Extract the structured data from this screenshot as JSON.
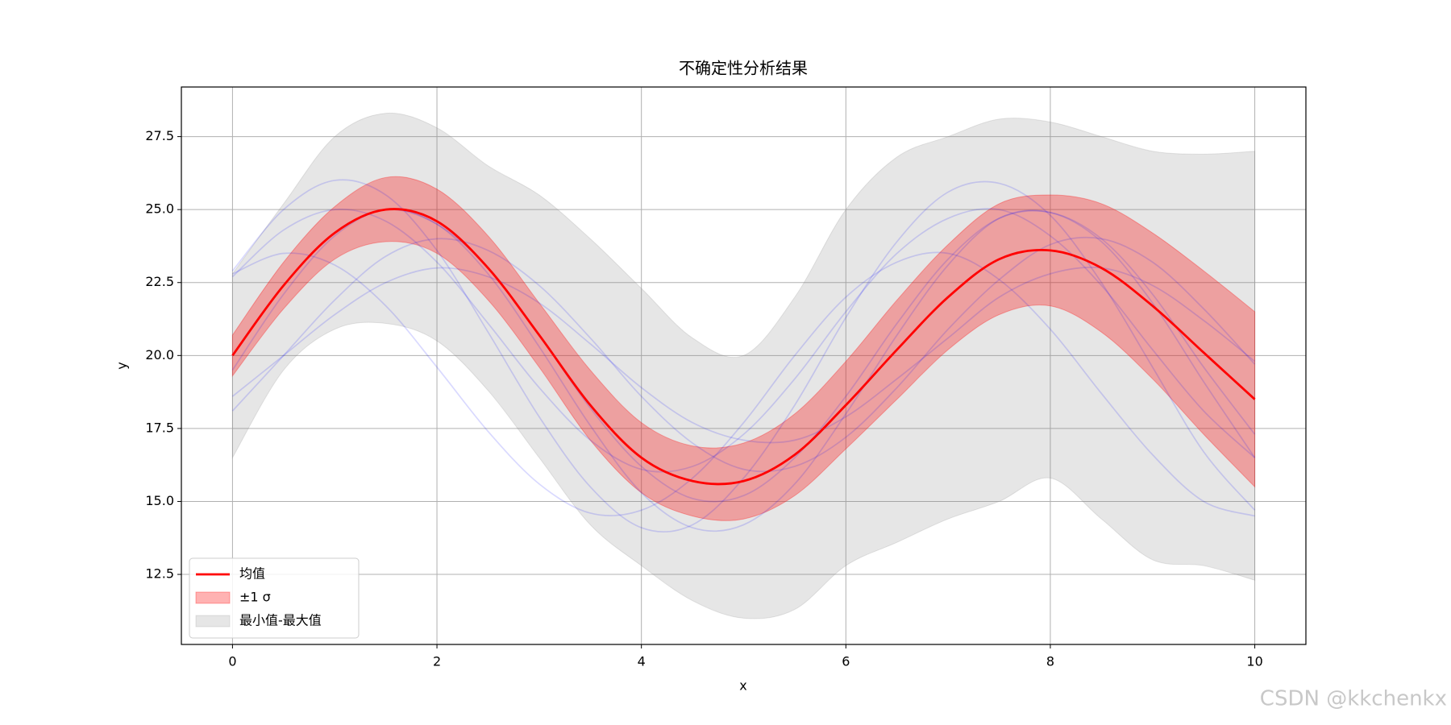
{
  "chart_data": {
    "type": "line",
    "title": "不确定性分析结果",
    "x_label": "x",
    "y_label": "y",
    "watermark": "CSDN @kkchenkx",
    "x": [
      0,
      0.5,
      1,
      1.5,
      2,
      2.5,
      3,
      3.5,
      4,
      4.5,
      5,
      5.5,
      6,
      6.5,
      7,
      7.5,
      8,
      8.5,
      9,
      9.5,
      10
    ],
    "xlim": [
      -0.5,
      10.5
    ],
    "ylim": [
      10.1,
      29.2
    ],
    "xticks": [
      0,
      2,
      4,
      6,
      8,
      10
    ],
    "yticks": [
      12.5,
      {
        "value": 15,
        "label": "15.0"
      },
      17.5,
      {
        "value": 20,
        "label": "20.0"
      },
      22.5,
      {
        "value": 25,
        "label": "25.0"
      },
      27.5
    ],
    "grid": true,
    "legend_loc": "lower left",
    "samples": {
      "color": "#0000ff",
      "alpha": 0.15,
      "lines": [
        [
          20,
          22.4,
          24.2,
          25.0,
          24.5,
          23.0,
          20.7,
          18.2,
          16.2,
          15.1,
          15.2,
          16.5,
          18.6,
          21.1,
          23.3,
          24.7,
          24.9,
          24.0,
          22.1,
          19.6,
          17.3
        ],
        [
          22.9,
          25.0,
          26.0,
          25.5,
          23.6,
          20.8,
          17.9,
          15.5,
          14.1,
          14.2,
          15.8,
          18.3,
          21.3,
          23.9,
          25.6,
          25.9,
          24.8,
          22.5,
          19.6,
          16.7,
          14.7
        ],
        [
          18.1,
          20,
          21.9,
          23.4,
          24.0,
          23.6,
          22.4,
          20.6,
          18.6,
          17.0,
          16.1,
          16.2,
          17.2,
          18.9,
          20.9,
          22.6,
          23.8,
          24.0,
          23.2,
          21.6,
          19.7
        ],
        [
          19.5,
          22.1,
          24.1,
          25.0,
          24.5,
          22.8,
          20.3,
          17.6,
          15.3,
          14.1,
          14.2,
          15.6,
          18.0,
          20.7,
          23.1,
          24.7,
          24.9,
          23.9,
          21.8,
          19.1,
          16.5
        ],
        [
          22.7,
          24.3,
          25.0,
          24.6,
          23.2,
          21.1,
          18.9,
          17.1,
          16.1,
          16.2,
          17.3,
          19.2,
          21.5,
          23.5,
          24.7,
          25.0,
          24.1,
          22.4,
          20.2,
          18.1,
          16.5
        ],
        [
          18.6,
          20,
          21.4,
          22.5,
          23.0,
          22.7,
          21.8,
          20.4,
          18.9,
          17.7,
          17.1,
          17.1,
          17.9,
          19.2,
          20.6,
          22.0,
          22.8,
          23.0,
          22.4,
          21.2,
          19.8
        ],
        [
          22.8,
          23.5,
          23.1,
          21.7,
          19.6,
          17.4,
          15.6,
          14.6,
          14.7,
          15.8,
          17.7,
          20.0,
          22.0,
          23.2,
          23.5,
          22.6,
          20.9,
          18.7,
          16.6,
          15.0,
          14.5
        ]
      ]
    },
    "series": [
      {
        "name": "均值",
        "color": "#ff0000",
        "values": [
          20,
          22.4,
          24.2,
          25.0,
          24.6,
          23.0,
          20.7,
          18.3,
          16.5,
          15.7,
          15.7,
          16.6,
          18.3,
          20.2,
          22.0,
          23.3,
          23.6,
          23.0,
          21.7,
          20.1,
          18.5
        ]
      }
    ],
    "bands": [
      {
        "name": "±1 σ",
        "color": "#ff0000",
        "alpha": 0.3,
        "upper": [
          20.7,
          23.2,
          25.1,
          26.1,
          25.7,
          24.1,
          21.8,
          19.5,
          17.7,
          16.9,
          17.0,
          18.0,
          19.8,
          21.9,
          23.8,
          25.2,
          25.5,
          25.2,
          24.2,
          22.9,
          21.5
        ],
        "lower": [
          19.3,
          21.6,
          23.3,
          23.9,
          23.5,
          21.9,
          19.6,
          17.1,
          15.3,
          14.5,
          14.4,
          15.2,
          16.8,
          18.5,
          20.2,
          21.4,
          21.7,
          20.8,
          19.2,
          17.3,
          15.5
        ]
      },
      {
        "name": "最小值-最大值",
        "color": "#808080",
        "alpha": 0.2,
        "upper": [
          22.8,
          25.2,
          27.5,
          28.3,
          27.8,
          26.5,
          25.5,
          24.0,
          22.3,
          20.6,
          20.0,
          22.0,
          25.0,
          26.8,
          27.5,
          28.1,
          28.0,
          27.5,
          27.0,
          26.9,
          27.0
        ],
        "lower": [
          16.5,
          19.5,
          20.9,
          21.1,
          20.5,
          18.8,
          16.5,
          14.2,
          12.8,
          11.6,
          11.0,
          11.3,
          12.8,
          13.6,
          14.4,
          15.0,
          15.8,
          14.4,
          13.0,
          12.8,
          12.3
        ]
      }
    ]
  }
}
